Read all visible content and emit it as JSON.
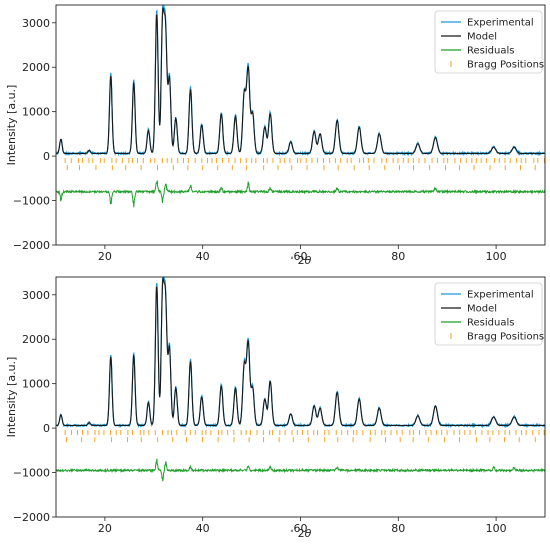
{
  "chart_data": [
    {
      "type": "line",
      "xlabel": "$^\\circ 2\\theta$",
      "ylabel": "Intensity [a.u.]",
      "xlim": [
        10,
        110
      ],
      "ylim": [
        -2000,
        3400
      ],
      "xticks": [
        20,
        40,
        60,
        80,
        100
      ],
      "yticks": [
        -2000,
        -1000,
        0,
        1000,
        2000,
        3000
      ],
      "grid": false,
      "legend_position": "top-right",
      "series": [
        {
          "name": "Experimental",
          "color": "#1f9ad6"
        },
        {
          "name": "Model",
          "color": "#1a1a1a"
        },
        {
          "name": "Residuals",
          "color": "#1f9e2a"
        },
        {
          "name": "Bragg Positions",
          "color": "#f39c12"
        }
      ],
      "background": 60,
      "peaks": [
        {
          "x": 11.0,
          "y": 380
        },
        {
          "x": 16.8,
          "y": 130
        },
        {
          "x": 21.2,
          "y": 1800
        },
        {
          "x": 25.9,
          "y": 1660
        },
        {
          "x": 28.9,
          "y": 580
        },
        {
          "x": 30.6,
          "y": 3200
        },
        {
          "x": 31.8,
          "y": 2950
        },
        {
          "x": 32.4,
          "y": 2700
        },
        {
          "x": 33.2,
          "y": 1750
        },
        {
          "x": 34.5,
          "y": 850
        },
        {
          "x": 37.5,
          "y": 1500
        },
        {
          "x": 39.8,
          "y": 700
        },
        {
          "x": 43.8,
          "y": 950
        },
        {
          "x": 46.7,
          "y": 900
        },
        {
          "x": 48.5,
          "y": 1400
        },
        {
          "x": 49.3,
          "y": 1950
        },
        {
          "x": 50.2,
          "y": 950
        },
        {
          "x": 52.7,
          "y": 650
        },
        {
          "x": 53.8,
          "y": 950
        },
        {
          "x": 58.0,
          "y": 320
        },
        {
          "x": 62.8,
          "y": 550
        },
        {
          "x": 64.0,
          "y": 500
        },
        {
          "x": 67.5,
          "y": 800
        },
        {
          "x": 72.0,
          "y": 650
        },
        {
          "x": 76.1,
          "y": 500
        },
        {
          "x": 84.0,
          "y": 280
        },
        {
          "x": 87.6,
          "y": 420
        },
        {
          "x": 99.5,
          "y": 200
        },
        {
          "x": 103.7,
          "y": 200
        }
      ],
      "residual_offset": -800,
      "residual_spikes": [
        {
          "x": 11.0,
          "y": -200
        },
        {
          "x": 21.2,
          "y": -300
        },
        {
          "x": 25.9,
          "y": -350
        },
        {
          "x": 30.6,
          "y": 300
        },
        {
          "x": 31.8,
          "y": -250
        },
        {
          "x": 32.4,
          "y": 200
        },
        {
          "x": 37.5,
          "y": 150
        },
        {
          "x": 43.8,
          "y": 100
        },
        {
          "x": 49.3,
          "y": 200
        },
        {
          "x": 53.8,
          "y": 100
        },
        {
          "x": 67.5,
          "y": 100
        },
        {
          "x": 87.6,
          "y": 100
        }
      ],
      "bragg_row_y": [
        -100,
        -260
      ]
    },
    {
      "type": "line",
      "xlabel": "$^\\circ 2\\theta$",
      "ylabel": "Intensity [a.u.]",
      "xlim": [
        10,
        110
      ],
      "ylim": [
        -2000,
        3400
      ],
      "xticks": [
        20,
        40,
        60,
        80,
        100
      ],
      "yticks": [
        -2000,
        -1000,
        0,
        1000,
        2000,
        3000
      ],
      "grid": false,
      "legend_position": "top-right",
      "series": [
        {
          "name": "Experimental",
          "color": "#1f9ad6"
        },
        {
          "name": "Model",
          "color": "#1a1a1a"
        },
        {
          "name": "Residuals",
          "color": "#1f9e2a"
        },
        {
          "name": "Bragg Positions",
          "color": "#f39c12"
        }
      ],
      "background": 60,
      "peaks": [
        {
          "x": 11.0,
          "y": 300
        },
        {
          "x": 16.8,
          "y": 120
        },
        {
          "x": 21.2,
          "y": 1600
        },
        {
          "x": 25.9,
          "y": 1650
        },
        {
          "x": 28.9,
          "y": 580
        },
        {
          "x": 30.6,
          "y": 3200
        },
        {
          "x": 31.8,
          "y": 2980
        },
        {
          "x": 32.4,
          "y": 2750
        },
        {
          "x": 33.2,
          "y": 1800
        },
        {
          "x": 34.5,
          "y": 900
        },
        {
          "x": 37.5,
          "y": 1500
        },
        {
          "x": 39.8,
          "y": 700
        },
        {
          "x": 43.8,
          "y": 950
        },
        {
          "x": 46.7,
          "y": 900
        },
        {
          "x": 48.5,
          "y": 1400
        },
        {
          "x": 49.3,
          "y": 1900
        },
        {
          "x": 50.2,
          "y": 900
        },
        {
          "x": 52.7,
          "y": 650
        },
        {
          "x": 53.8,
          "y": 1050
        },
        {
          "x": 58.0,
          "y": 320
        },
        {
          "x": 62.8,
          "y": 500
        },
        {
          "x": 64.0,
          "y": 450
        },
        {
          "x": 67.5,
          "y": 800
        },
        {
          "x": 72.0,
          "y": 650
        },
        {
          "x": 76.1,
          "y": 450
        },
        {
          "x": 84.0,
          "y": 280
        },
        {
          "x": 87.6,
          "y": 500
        },
        {
          "x": 99.5,
          "y": 250
        },
        {
          "x": 103.7,
          "y": 250
        }
      ],
      "residual_offset": -950,
      "residual_spikes": [
        {
          "x": 30.6,
          "y": 250
        },
        {
          "x": 31.8,
          "y": -250
        },
        {
          "x": 32.4,
          "y": 200
        },
        {
          "x": 37.5,
          "y": 80
        },
        {
          "x": 49.3,
          "y": 120
        },
        {
          "x": 53.8,
          "y": 80
        },
        {
          "x": 67.5,
          "y": 80
        },
        {
          "x": 99.5,
          "y": 80
        },
        {
          "x": 103.7,
          "y": 80
        }
      ],
      "bragg_row_y": [
        -100,
        -260
      ]
    }
  ]
}
